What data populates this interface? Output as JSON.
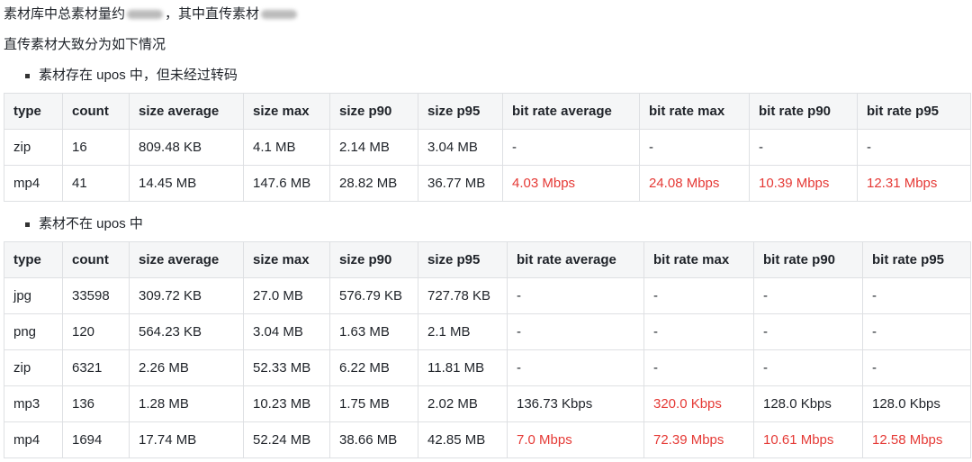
{
  "intro": {
    "line1_a": "素材库中总素材量约",
    "line1_b": "，其中直传素材",
    "line2": "直传素材大致分为如下情况"
  },
  "sections": [
    {
      "bullet": "素材存在 upos 中，但未经过转码"
    },
    {
      "bullet": "素材不在 upos 中"
    }
  ],
  "headers": [
    "type",
    "count",
    "size average",
    "size max",
    "size p90",
    "size p95",
    "bit rate average",
    "bit rate max",
    "bit rate p90",
    "bit rate p95"
  ],
  "highlight_color": "#e53935",
  "table1": [
    [
      "zip",
      "16",
      "809.48 KB",
      "4.1 MB",
      "2.14 MB",
      "3.04 MB",
      "-",
      "-",
      "-",
      "-"
    ],
    [
      "mp4",
      "41",
      "14.45 MB",
      "147.6 MB",
      "28.82 MB",
      "36.77 MB",
      "4.03 Mbps",
      "24.08 Mbps",
      "10.39 Mbps",
      "12.31 Mbps"
    ]
  ],
  "table1_red": [
    [],
    [
      6,
      7,
      8,
      9
    ]
  ],
  "table2": [
    [
      "jpg",
      "33598",
      "309.72 KB",
      "27.0 MB",
      "576.79 KB",
      "727.78 KB",
      "-",
      "-",
      "-",
      "-"
    ],
    [
      "png",
      "120",
      "564.23 KB",
      "3.04 MB",
      "1.63 MB",
      "2.1 MB",
      "-",
      "-",
      "-",
      "-"
    ],
    [
      "zip",
      "6321",
      "2.26 MB",
      "52.33 MB",
      "6.22 MB",
      "11.81 MB",
      "-",
      "-",
      "-",
      "-"
    ],
    [
      "mp3",
      "136",
      "1.28 MB",
      "10.23 MB",
      "1.75 MB",
      "2.02 MB",
      "136.73 Kbps",
      "320.0 Kbps",
      "128.0 Kbps",
      "128.0 Kbps"
    ],
    [
      "mp4",
      "1694",
      "17.74 MB",
      "52.24 MB",
      "38.66 MB",
      "42.85 MB",
      "7.0 Mbps",
      "72.39 Mbps",
      "10.61 Mbps",
      "12.58 Mbps"
    ]
  ],
  "table2_red": [
    [],
    [],
    [],
    [
      7
    ],
    [
      6,
      7,
      8,
      9
    ]
  ]
}
